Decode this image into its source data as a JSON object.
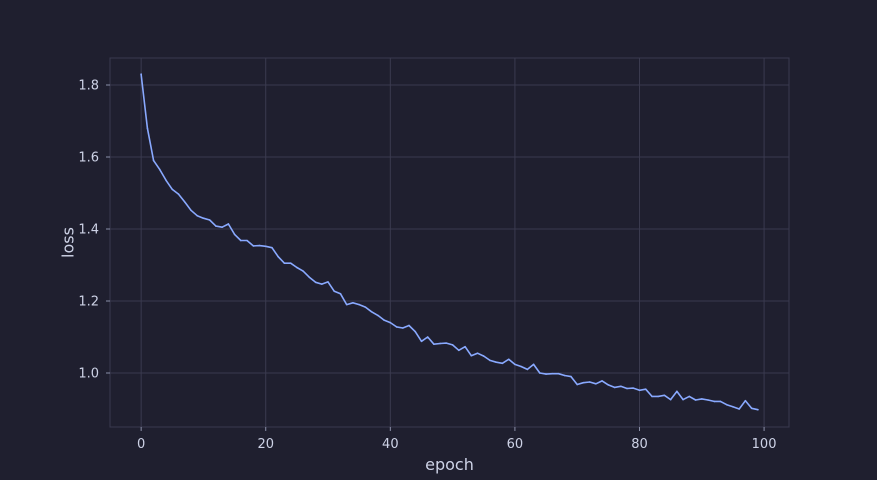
{
  "chart_data": {
    "type": "line",
    "title": "",
    "xlabel": "epoch",
    "ylabel": "loss",
    "xlim": [
      -5,
      104
    ],
    "ylim": [
      0.85,
      1.875
    ],
    "x_ticks": [
      0,
      20,
      40,
      60,
      80,
      100
    ],
    "y_ticks": [
      1.0,
      1.2,
      1.4,
      1.6,
      1.8
    ],
    "grid": true,
    "legend": "none",
    "colors": {
      "background": "#1f1f2f",
      "line": "#89a9ff",
      "grid": "#3a3a4f",
      "text": "#cdd2e6"
    },
    "series": [
      {
        "x": [
          0,
          1,
          2,
          3,
          4,
          5,
          6,
          7,
          8,
          9,
          10,
          11,
          12,
          13,
          14,
          15,
          16,
          17,
          18,
          19,
          20,
          21,
          22,
          23,
          24,
          25,
          26,
          27,
          28,
          29,
          30,
          31,
          32,
          33,
          34,
          35,
          36,
          37,
          38,
          39,
          40,
          41,
          42,
          43,
          44,
          45,
          46,
          47,
          48,
          49,
          50,
          51,
          52,
          53,
          54,
          55,
          56,
          57,
          58,
          59,
          60,
          61,
          62,
          63,
          64,
          65,
          66,
          67,
          68,
          69,
          70,
          71,
          72,
          73,
          74,
          75,
          76,
          77,
          78,
          79,
          80,
          81,
          82,
          83,
          84,
          85,
          86,
          87,
          88,
          89,
          90,
          91,
          92,
          93,
          94,
          95,
          96,
          97,
          98,
          99
        ],
        "values": [
          1.83,
          1.68,
          1.59,
          1.565,
          1.535,
          1.51,
          1.497,
          1.475,
          1.452,
          1.437,
          1.43,
          1.425,
          1.408,
          1.405,
          1.414,
          1.385,
          1.368,
          1.368,
          1.353,
          1.354,
          1.352,
          1.348,
          1.323,
          1.305,
          1.305,
          1.293,
          1.283,
          1.266,
          1.252,
          1.247,
          1.253,
          1.227,
          1.22,
          1.19,
          1.195,
          1.19,
          1.183,
          1.17,
          1.16,
          1.147,
          1.14,
          1.128,
          1.125,
          1.132,
          1.115,
          1.088,
          1.1,
          1.08,
          1.082,
          1.083,
          1.078,
          1.063,
          1.073,
          1.048,
          1.055,
          1.047,
          1.035,
          1.03,
          1.027,
          1.038,
          1.024,
          1.018,
          1.01,
          1.024,
          1.0,
          0.997,
          0.998,
          0.998,
          0.993,
          0.99,
          0.968,
          0.973,
          0.975,
          0.97,
          0.978,
          0.967,
          0.96,
          0.963,
          0.957,
          0.958,
          0.952,
          0.955,
          0.935,
          0.935,
          0.938,
          0.926,
          0.949,
          0.926,
          0.935,
          0.925,
          0.928,
          0.925,
          0.921,
          0.921,
          0.912,
          0.906,
          0.9,
          0.923,
          0.902,
          0.898
        ]
      }
    ]
  }
}
